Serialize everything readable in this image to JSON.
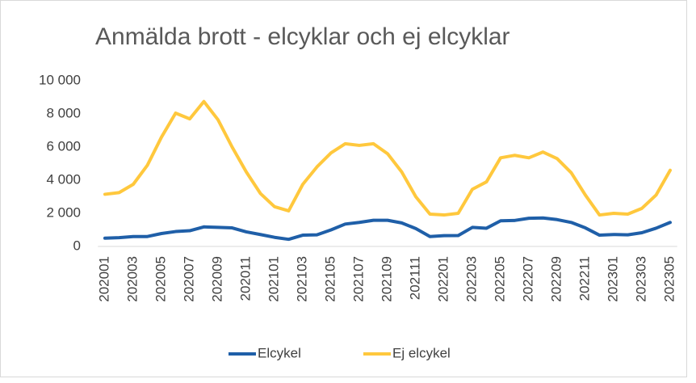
{
  "chart_data": {
    "type": "line",
    "title": "Anmälda brott - elcyklar och ej elcyklar",
    "categories": [
      "202001",
      null,
      "202003",
      null,
      "202005",
      null,
      "202007",
      null,
      "202009",
      null,
      "202011",
      null,
      "202101",
      null,
      "202103",
      null,
      "202105",
      null,
      "202107",
      null,
      "202109",
      null,
      "202111",
      null,
      "202201",
      null,
      "202203",
      null,
      "202205",
      null,
      "202207",
      null,
      "202209",
      null,
      "202211",
      null,
      "202301",
      null,
      "202303",
      null,
      "202305"
    ],
    "series": [
      {
        "name": "Elcykel",
        "color": "#1f5fa8",
        "values": [
          500,
          530,
          600,
          600,
          780,
          900,
          950,
          1180,
          1150,
          1120,
          880,
          720,
          550,
          430,
          680,
          700,
          1000,
          1350,
          1450,
          1580,
          1580,
          1420,
          1080,
          600,
          650,
          660,
          1150,
          1100,
          1550,
          1570,
          1700,
          1720,
          1620,
          1450,
          1120,
          680,
          720,
          700,
          830,
          1100,
          1450
        ]
      },
      {
        "name": "Ej elcykel",
        "color": "#ffc83d",
        "values": [
          3150,
          3250,
          3750,
          4900,
          6600,
          8050,
          7700,
          8750,
          7650,
          6000,
          4500,
          3200,
          2400,
          2150,
          3750,
          4800,
          5650,
          6200,
          6100,
          6200,
          5600,
          4500,
          3000,
          1950,
          1900,
          2000,
          3450,
          3900,
          5350,
          5500,
          5350,
          5700,
          5300,
          4450,
          3100,
          1900,
          2000,
          1950,
          2300,
          3100,
          4600
        ]
      }
    ],
    "ylim": [
      0,
      10000
    ],
    "yticks": [
      0,
      {
        "value": 2000,
        "label": "2 000"
      },
      {
        "value": 4000,
        "label": "4 000"
      },
      {
        "value": 6000,
        "label": "6 000"
      },
      {
        "value": 8000,
        "label": "8 000"
      },
      {
        "value": 10000,
        "label": "10 000"
      }
    ],
    "grid": false,
    "legend": "bottom"
  }
}
